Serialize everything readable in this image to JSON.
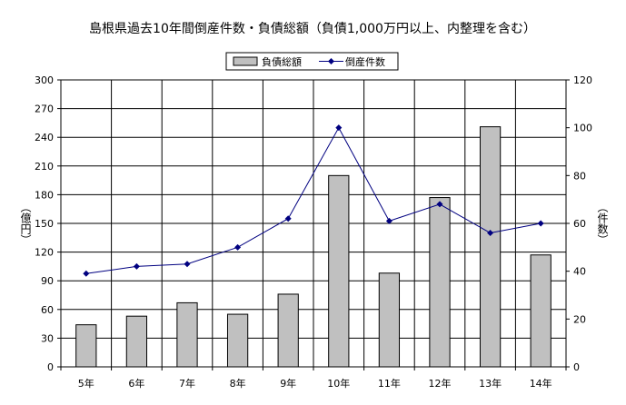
{
  "chart_data": {
    "type": "bar+line",
    "title": "島根県過去10年間倒産件数・負債総額（負債1,000万円以上、内整理を含む）",
    "categories": [
      "5年",
      "6年",
      "7年",
      "8年",
      "9年",
      "10年",
      "11年",
      "12年",
      "13年",
      "14年"
    ],
    "series": [
      {
        "name": "負債総額",
        "type": "bar",
        "axis": "left",
        "color": "#c0c0c0",
        "values": [
          44,
          53,
          67,
          55,
          76,
          200,
          98,
          177,
          251,
          117
        ]
      },
      {
        "name": "倒産件数",
        "type": "line",
        "axis": "right",
        "color": "#000080",
        "values": [
          39,
          42,
          43,
          50,
          62,
          100,
          61,
          68,
          56,
          60
        ]
      }
    ],
    "y_left": {
      "label": "（億円）",
      "ylim": [
        0,
        300
      ],
      "ticks": [
        "0",
        "30",
        "60",
        "90",
        "120",
        "150",
        "180",
        "210",
        "240",
        "270",
        "300"
      ]
    },
    "y_right": {
      "label": "（件数）",
      "ylim": [
        0,
        120
      ],
      "ticks": [
        "0",
        "20",
        "40",
        "60",
        "80",
        "100",
        "120"
      ]
    },
    "grid": true,
    "legend_position": "top-center"
  }
}
